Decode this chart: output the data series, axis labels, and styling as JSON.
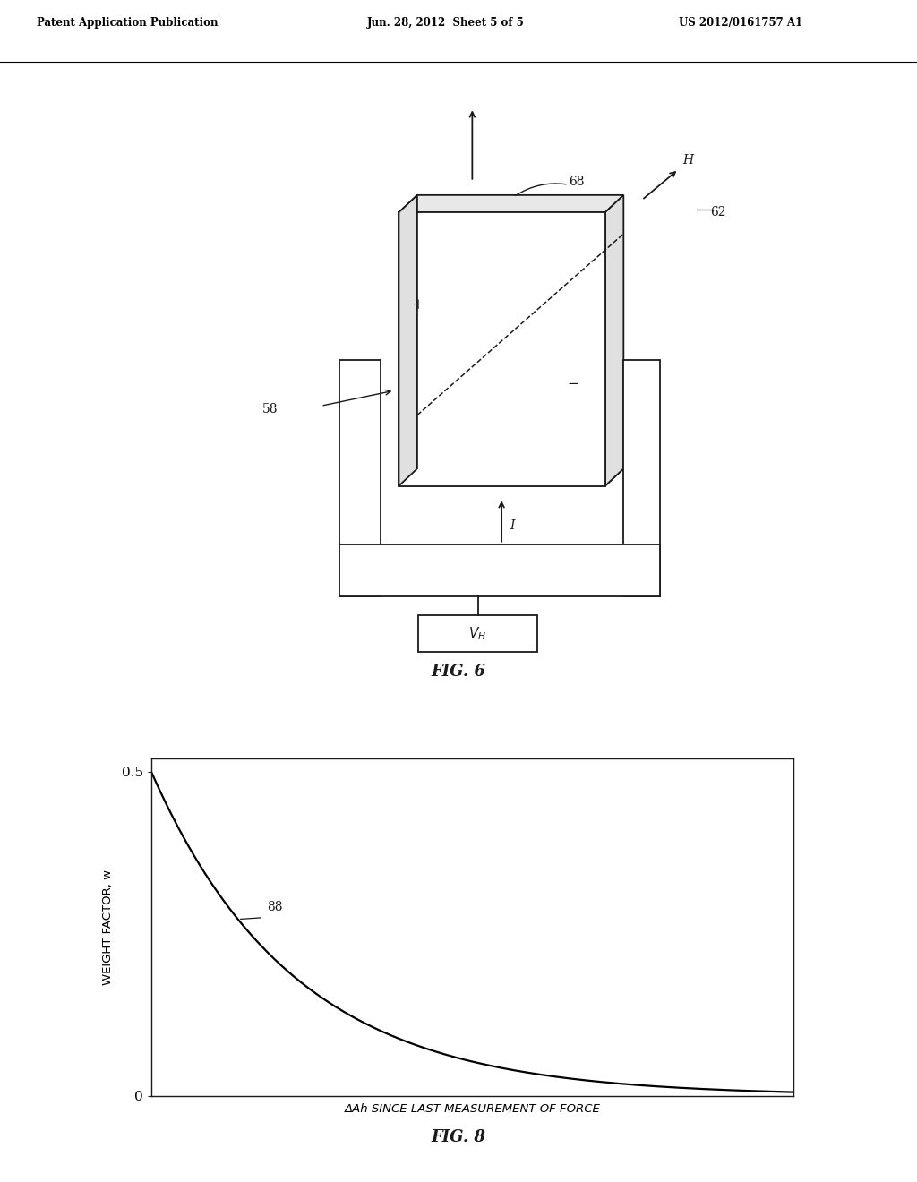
{
  "header_left": "Patent Application Publication",
  "header_mid": "Jun. 28, 2012  Sheet 5 of 5",
  "header_right": "US 2012/0161757 A1",
  "fig6_label": "FIG. 6",
  "fig8_label": "FIG. 8",
  "background_color": "#ffffff",
  "line_color": "#000000",
  "decay_rate": 4.5,
  "fig8_ylabel": "WEIGHT FACTOR, w",
  "fig8_xlabel": "ΔAh SINCE LAST MEASUREMENT OF FORCE",
  "fig8_ytick_labels": [
    "0",
    "0.5"
  ],
  "fig8_curve_label": "88"
}
